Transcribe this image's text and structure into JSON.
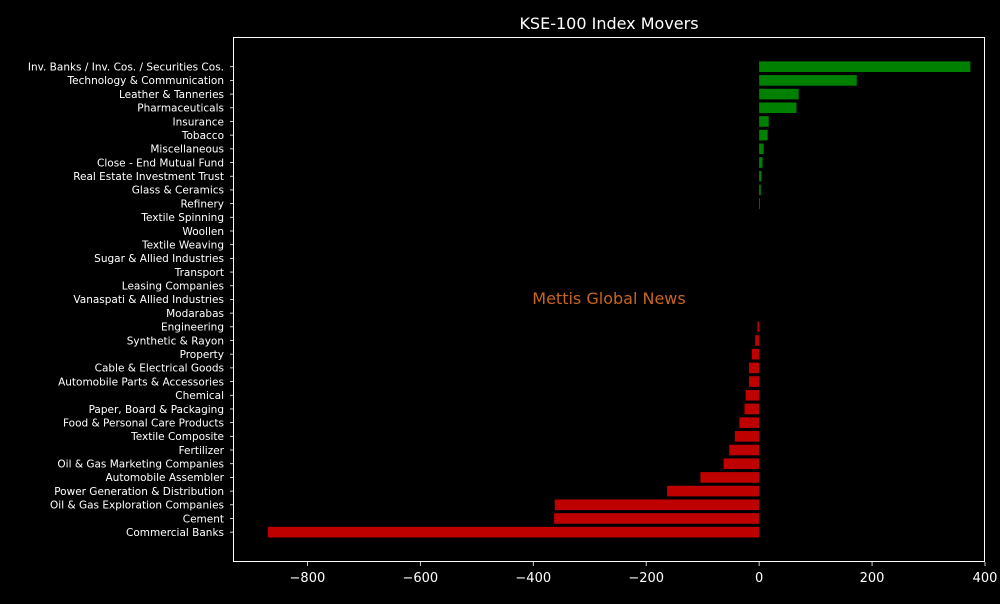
{
  "chart_data": {
    "type": "bar",
    "orientation": "horizontal",
    "title": "KSE-100 Index Movers",
    "watermark": "Mettis Global News",
    "xlim": [
      -930,
      400
    ],
    "xticks": [
      -800,
      -600,
      -400,
      -200,
      0,
      200,
      400
    ],
    "xtick_labels": [
      "−800",
      "−600",
      "−400",
      "−200",
      "0",
      "200",
      "400"
    ],
    "colors": {
      "positive": "#008000",
      "negative": "#bf0000",
      "background": "#000000",
      "text": "#ffffff",
      "watermark": "#c8641e"
    },
    "categories": [
      "Inv. Banks / Inv. Cos. / Securities Cos.",
      "Technology & Communication",
      "Leather & Tanneries",
      "Pharmaceuticals",
      "Insurance",
      "Tobacco",
      "Miscellaneous",
      "Close - End Mutual Fund",
      "Real Estate Investment Trust",
      "Glass & Ceramics",
      "Refinery",
      "Textile Spinning",
      "Woollen",
      "Textile Weaving",
      "Sugar & Allied Industries",
      "Transport",
      "Leasing Companies",
      "Vanaspati & Allied Industries",
      "Modarabas",
      "Engineering",
      "Synthetic & Rayon",
      "Property",
      "Cable & Electrical Goods",
      "Automobile Parts & Accessories",
      "Chemical",
      "Paper, Board & Packaging",
      "Food & Personal Care Products",
      "Textile Composite",
      "Fertilizer",
      "Oil & Gas Marketing Companies",
      "Automobile Assembler",
      "Power Generation & Distribution",
      "Oil & Gas Exploration Companies",
      "Cement",
      "Commercial Banks"
    ],
    "values": [
      374,
      173,
      70,
      66,
      17,
      15,
      8,
      6,
      4,
      3,
      1,
      0,
      0,
      0,
      0,
      0,
      0,
      0,
      0,
      -3,
      -7,
      -13,
      -18,
      -18,
      -24,
      -26,
      -35,
      -43,
      -53,
      -63,
      -104,
      -163,
      -362,
      -363,
      -870
    ]
  }
}
